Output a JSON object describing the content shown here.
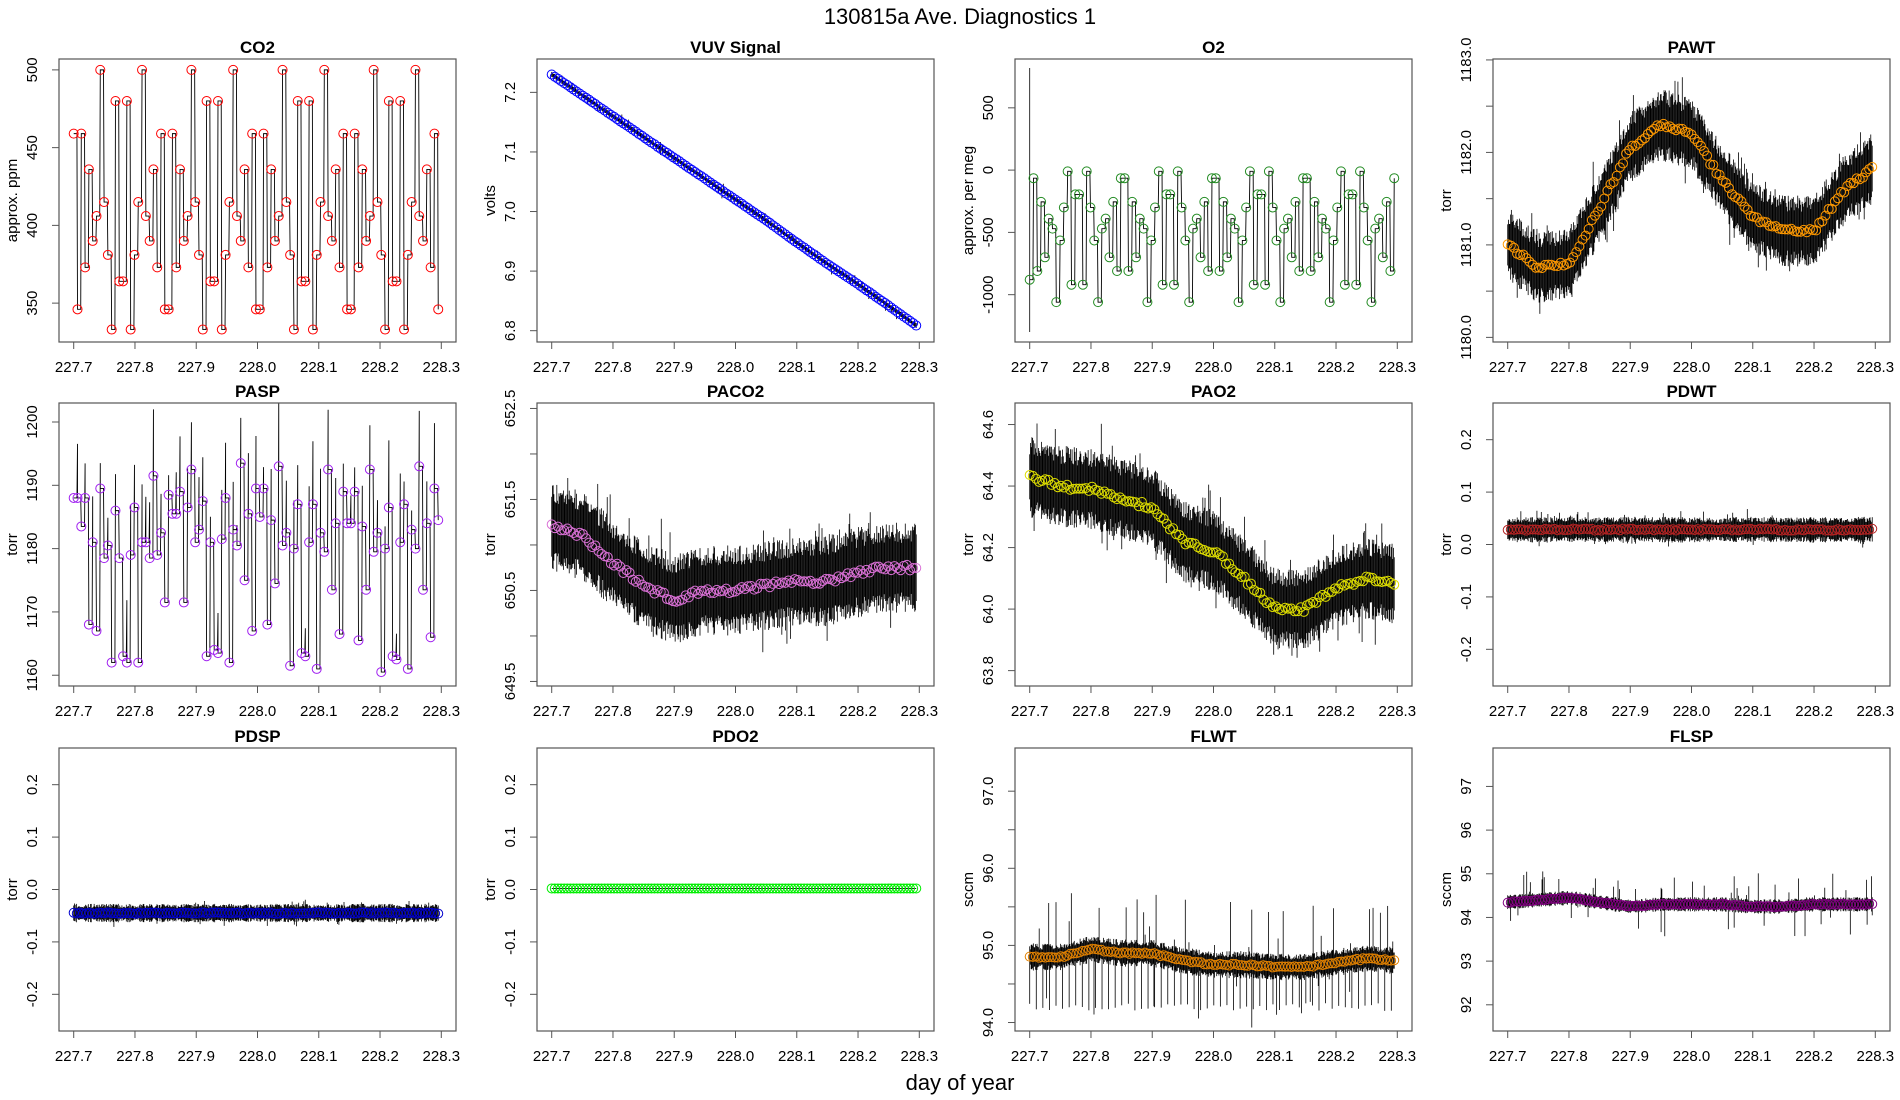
{
  "title": "130815a   Ave. Diagnostics 1",
  "xlabel": "day of year",
  "chart_data": {
    "type": "line",
    "layout": "3x4 grid",
    "xlim": [
      227.7,
      228.3
    ],
    "xticks": [
      227.7,
      227.8,
      227.9,
      228.0,
      228.1,
      228.2,
      228.3
    ],
    "xtick_labels": [
      "227.7",
      "227.8",
      "227.9",
      "228.0",
      "228.1",
      "228.2",
      "228.3"
    ],
    "xlabel": "day of year",
    "panels": [
      {
        "name": "CO2",
        "ylabel": "approx. ppm",
        "color": "#ff0000",
        "kind": "step",
        "ylim": [
          325,
          507
        ],
        "yticks": [
          350,
          400,
          450,
          500
        ],
        "ytick_labels": [
          "350",
          "400",
          "450",
          "500"
        ],
        "values": [
          459,
          346,
          459,
          373,
          436,
          390,
          406,
          500,
          415,
          381,
          333,
          480,
          364,
          364,
          480,
          333,
          381,
          415,
          500,
          406,
          390,
          436,
          373,
          459,
          346,
          346,
          459,
          373,
          436,
          390,
          406,
          500,
          415,
          381,
          333,
          480,
          364,
          364,
          480,
          333,
          381,
          415,
          500,
          406,
          390,
          436,
          373,
          459,
          346,
          346,
          459,
          373,
          436,
          390,
          406,
          500,
          415,
          381,
          333,
          480,
          364,
          364,
          480,
          333,
          381,
          415,
          500,
          406,
          390,
          436,
          373,
          459,
          346,
          346,
          459,
          373,
          436,
          390,
          406,
          500,
          415,
          381,
          333,
          480,
          364,
          364,
          480,
          333,
          381,
          415,
          500,
          406,
          390,
          436,
          373,
          459,
          346
        ]
      },
      {
        "name": "VUV Signal",
        "ylabel": "volts",
        "color": "#0000ff",
        "kind": "band",
        "ylim": [
          6.781,
          7.256
        ],
        "yticks": [
          6.8,
          6.9,
          7.0,
          7.1,
          7.2
        ],
        "ytick_labels": [
          "6.8",
          "6.9",
          "7.0",
          "7.1",
          "7.2"
        ],
        "mean": [
          7.23,
          7.195,
          7.16,
          7.125,
          7.09,
          7.055,
          7.02,
          6.985,
          6.948,
          6.912,
          6.878,
          6.842,
          6.805
        ],
        "band": 0.004,
        "spike": 0.01
      },
      {
        "name": "O2",
        "ylabel": "approx. per meg",
        "color": "#228b22",
        "kind": "step",
        "ylim": [
          -1380,
          892
        ],
        "yticks": [
          -1000,
          -500,
          0,
          500
        ],
        "ytick_labels": [
          "-1000",
          "-500",
          "0",
          "500"
        ],
        "initial_spike": [
          -1300,
          820
        ],
        "values": [
          -880,
          -65,
          -810,
          -255,
          -700,
          -390,
          -470,
          -1060,
          -565,
          -300,
          -10,
          -920,
          -195,
          -195,
          -920,
          -10,
          -300,
          -565,
          -1060,
          -470,
          -390,
          -700,
          -255,
          -810,
          -65,
          -65,
          -810,
          -255,
          -700,
          -390,
          -470,
          -1060,
          -565,
          -300,
          -10,
          -920,
          -195,
          -195,
          -920,
          -10,
          -300,
          -565,
          -1060,
          -470,
          -390,
          -700,
          -255,
          -810,
          -65,
          -65,
          -810,
          -255,
          -700,
          -390,
          -470,
          -1060,
          -565,
          -300,
          -10,
          -920,
          -195,
          -195,
          -920,
          -10,
          -300,
          -565,
          -1060,
          -470,
          -390,
          -700,
          -255,
          -810,
          -65,
          -65,
          -810,
          -255,
          -700,
          -390,
          -470,
          -1060,
          -565,
          -300,
          -10,
          -920,
          -195,
          -195,
          -920,
          -10,
          -300,
          -565,
          -1060,
          -470,
          -390,
          -700,
          -255,
          -810,
          -65
        ]
      },
      {
        "name": "PAWT",
        "ylabel": "torr",
        "color": "#ff9900",
        "kind": "band",
        "ylim": [
          1179.95,
          1183.01
        ],
        "yticks": [
          1180,
          1180.5,
          1181,
          1181.5,
          1182,
          1182.5,
          1183
        ],
        "ytick_labels": [
          "1180.0",
          "",
          "1181.0",
          "",
          "1182.0",
          "",
          "1183.0"
        ],
        "mean": [
          1181.0,
          1180.75,
          1180.8,
          1181.4,
          1182.05,
          1182.3,
          1182.2,
          1181.7,
          1181.3,
          1181.15,
          1181.15,
          1181.6,
          1181.85
        ],
        "band": 0.35,
        "spike": 0.25
      },
      {
        "name": "PASP",
        "ylabel": "torr",
        "color": "#a020f0",
        "kind": "spiky",
        "ylim": [
          1158.3,
          1203
        ],
        "yticks": [
          1160,
          1170,
          1180,
          1190,
          1200
        ],
        "ytick_labels": [
          "1160",
          "1170",
          "1180",
          "1190",
          "1200"
        ],
        "values": [
          1188,
          1188,
          1183.5,
          1188,
          1168,
          1181,
          1167,
          1189.5,
          1178.5,
          1180.5,
          1162,
          1186,
          1178.5,
          1163,
          1162,
          1179,
          1186.5,
          1162,
          1181,
          1181,
          1178.5,
          1191.5,
          1179,
          1182.5,
          1171.5,
          1188.5,
          1185.5,
          1185.5,
          1189,
          1171.5,
          1186.5,
          1192.5,
          1181,
          1183,
          1187.5,
          1163,
          1181,
          1164,
          1163.5,
          1181.5,
          1188,
          1162,
          1183,
          1180.5,
          1193.5,
          1175,
          1185.5,
          1167,
          1189.5,
          1185,
          1189.5,
          1168,
          1184.5,
          1174.5,
          1193,
          1180.5,
          1182.5,
          1161.5,
          1180,
          1187,
          1163.5,
          1163,
          1181,
          1187,
          1161,
          1182.5,
          1179.5,
          1192.5,
          1173.5,
          1184,
          1166.5,
          1189,
          1184,
          1184,
          1189,
          1165.5,
          1183.5,
          1173.5,
          1192.5,
          1179.5,
          1182.5,
          1160.5,
          1180,
          1186.5,
          1163,
          1162.5,
          1181,
          1187,
          1161,
          1183,
          1180,
          1193,
          1173.5,
          1184,
          1166,
          1189.5,
          1184.5
        ]
      },
      {
        "name": "PACO2",
        "ylabel": "torr",
        "color": "#da70d6",
        "kind": "band",
        "ylim": [
          649.45,
          652.56
        ],
        "yticks": [
          649.5,
          650,
          650.5,
          651,
          651.5,
          652,
          652.5
        ],
        "ytick_labels": [
          "649.5",
          "",
          "650.5",
          "",
          "651.5",
          "",
          "652.5"
        ],
        "mean": [
          651.2,
          651.1,
          650.8,
          650.55,
          650.4,
          650.5,
          650.5,
          650.55,
          650.6,
          650.6,
          650.7,
          650.75,
          650.75
        ],
        "band": 0.45,
        "spike": 0.4
      },
      {
        "name": "PAO2",
        "ylabel": "torr",
        "color": "#dddd00",
        "kind": "band",
        "ylim": [
          63.75,
          64.67
        ],
        "yticks": [
          63.8,
          64.0,
          64.2,
          64.4,
          64.6
        ],
        "ytick_labels": [
          "63.8",
          "64.0",
          "64.2",
          "64.4",
          "64.6"
        ],
        "mean": [
          64.43,
          64.4,
          64.39,
          64.36,
          64.33,
          64.22,
          64.19,
          64.1,
          64.0,
          64.0,
          64.07,
          64.1,
          64.08
        ],
        "band": 0.12,
        "spike": 0.1
      },
      {
        "name": "PDWT",
        "ylabel": "torr",
        "color": "#b22222",
        "kind": "band",
        "ylim": [
          -0.27,
          0.27
        ],
        "yticks": [
          -0.2,
          -0.1,
          0.0,
          0.1,
          0.2
        ],
        "ytick_labels": [
          "-0.2",
          "-0.1",
          "0.0",
          "0.1",
          "0.2"
        ],
        "mean": [
          0.028,
          0.028,
          0.029,
          0.028,
          0.029,
          0.028,
          0.028,
          0.028,
          0.029,
          0.028,
          0.028,
          0.028,
          0.029
        ],
        "band": 0.022,
        "spike": 0.015
      },
      {
        "name": "PDSP",
        "ylabel": "torr",
        "color": "#0000cd",
        "kind": "band",
        "ylim": [
          -0.27,
          0.27
        ],
        "yticks": [
          -0.2,
          -0.1,
          0.0,
          0.1,
          0.2
        ],
        "ytick_labels": [
          "-0.2",
          "-0.1",
          "0.0",
          "0.1",
          "0.2"
        ],
        "mean": [
          -0.045,
          -0.045,
          -0.045,
          -0.045,
          -0.045,
          -0.045,
          -0.045,
          -0.045,
          -0.045,
          -0.045,
          -0.045,
          -0.045,
          -0.045
        ],
        "band": 0.016,
        "spike": 0.01
      },
      {
        "name": "PDO2",
        "ylabel": "torr",
        "color": "#00ee00",
        "kind": "band",
        "ylim": [
          -0.27,
          0.27
        ],
        "yticks": [
          -0.2,
          -0.1,
          0.0,
          0.1,
          0.2
        ],
        "ytick_labels": [
          "-0.2",
          "-0.1",
          "0.0",
          "0.1",
          "0.2"
        ],
        "mean": [
          0.002,
          0.002,
          0.002,
          0.002,
          0.002,
          0.002,
          0.002,
          0.002,
          0.002,
          0.002,
          0.002,
          0.002,
          0.002
        ],
        "band": 0,
        "spike": 0
      },
      {
        "name": "FLWT",
        "ylabel": "sccm",
        "color": "#e08000",
        "kind": "band",
        "ylim": [
          93.89,
          97.56
        ],
        "yticks": [
          94.0,
          94.5,
          95.0,
          95.5,
          96.0,
          96.5,
          97.0
        ],
        "ytick_labels": [
          "94.0",
          "",
          "95.0",
          "",
          "96.0",
          "",
          "97.0"
        ],
        "mean": [
          94.85,
          94.85,
          94.95,
          94.9,
          94.9,
          94.8,
          94.75,
          94.75,
          94.72,
          94.72,
          94.78,
          94.83,
          94.8
        ],
        "band": 0.16,
        "spike": 0.7,
        "low_spike": 94.15
      },
      {
        "name": "FLSP",
        "ylabel": "sccm",
        "color": "#800080",
        "kind": "band",
        "ylim": [
          91.4,
          97.88
        ],
        "yticks": [
          92,
          93,
          94,
          95,
          96,
          97
        ],
        "ytick_labels": [
          "92",
          "93",
          "94",
          "95",
          "96",
          "97"
        ],
        "mean": [
          94.35,
          94.4,
          94.45,
          94.35,
          94.25,
          94.3,
          94.3,
          94.3,
          94.25,
          94.25,
          94.3,
          94.3,
          94.3
        ],
        "band": 0.15,
        "spike": 0.6
      }
    ]
  }
}
